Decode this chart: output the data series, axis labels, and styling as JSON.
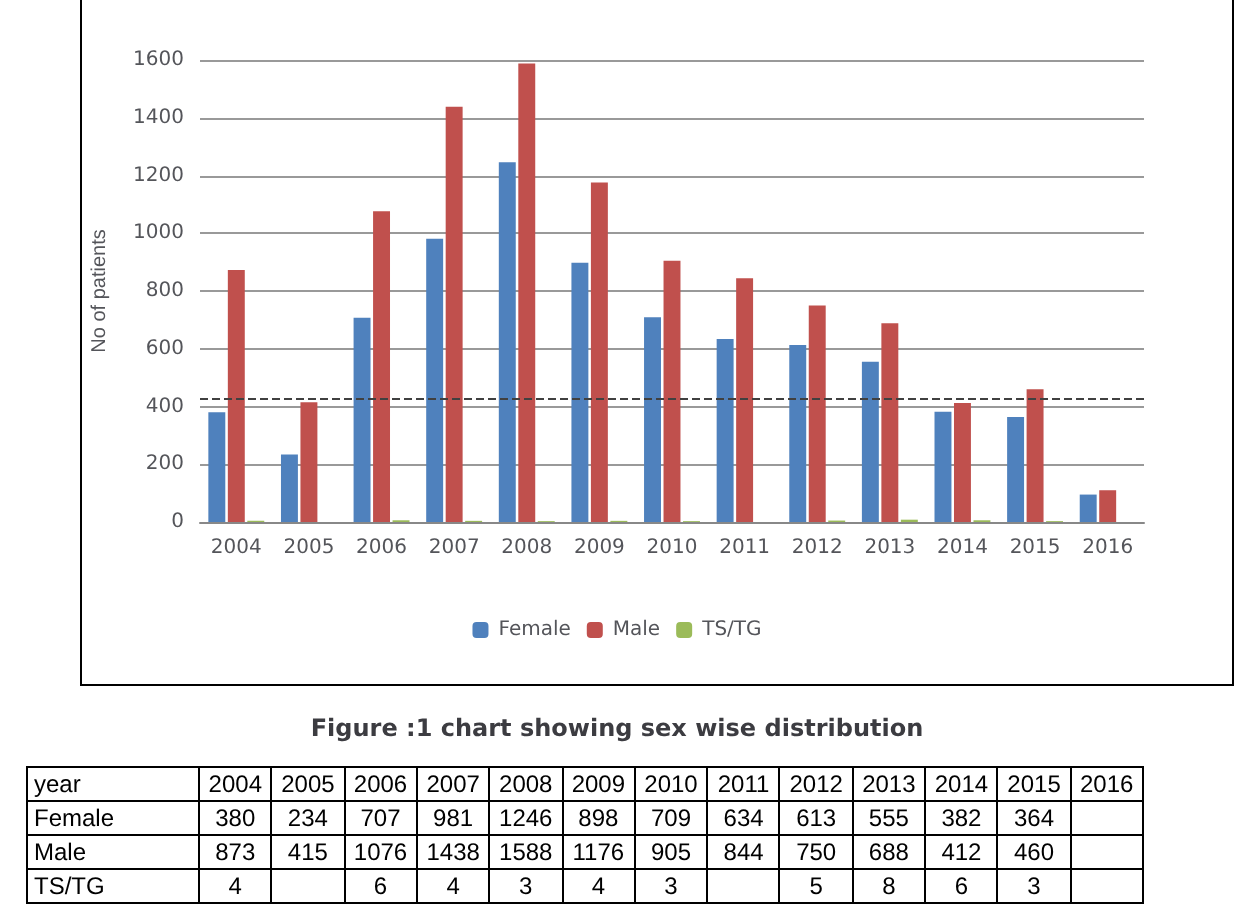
{
  "chart_data": {
    "type": "bar",
    "title": "Figure :1 chart showing sex wise distribution",
    "ylabel": "No of patients",
    "annotations": [
      "year"
    ],
    "categories": [
      "2004",
      "2005",
      "2006",
      "2007",
      "2008",
      "2009",
      "2010",
      "2011",
      "2012",
      "2013",
      "2014",
      "2015",
      "2016"
    ],
    "series": [
      {
        "name": "Female",
        "color": "#4f81bd",
        "values": [
          380,
          234,
          707,
          981,
          1246,
          898,
          709,
          634,
          613,
          555,
          382,
          364,
          95
        ],
        "value_labels": [
          "380",
          "234",
          "707",
          "981",
          "1246",
          "898",
          "709",
          "634",
          "613",
          "555",
          "382",
          "364",
          null
        ]
      },
      {
        "name": "Male",
        "color": "#c0504d",
        "values": [
          873,
          415,
          1076,
          1438,
          1588,
          1176,
          905,
          844,
          750,
          688,
          412,
          460,
          110
        ],
        "value_labels": [
          "873",
          "415",
          "1076",
          "1438",
          "1588",
          "1176",
          "905",
          "844",
          "750",
          "688",
          "412",
          "460",
          null
        ]
      },
      {
        "name": "TS/TG",
        "color": "#9bbb59",
        "values": [
          4,
          null,
          6,
          4,
          3,
          4,
          3,
          null,
          5,
          8,
          6,
          3,
          null
        ],
        "value_labels": [
          "4",
          null,
          "6",
          "4",
          "3",
          "4",
          "3",
          null,
          "5",
          "8",
          "6",
          "3",
          null
        ]
      }
    ],
    "ylim": [
      0,
      1600
    ],
    "yticks": [
      0,
      200,
      400,
      600,
      800,
      1000,
      1200,
      1400,
      1600
    ],
    "grid": "y",
    "legend": "bottom",
    "ref_lines": [
      {
        "axis": "y",
        "value": 425,
        "line_style": "dashed",
        "color": "#404040"
      }
    ]
  }
}
